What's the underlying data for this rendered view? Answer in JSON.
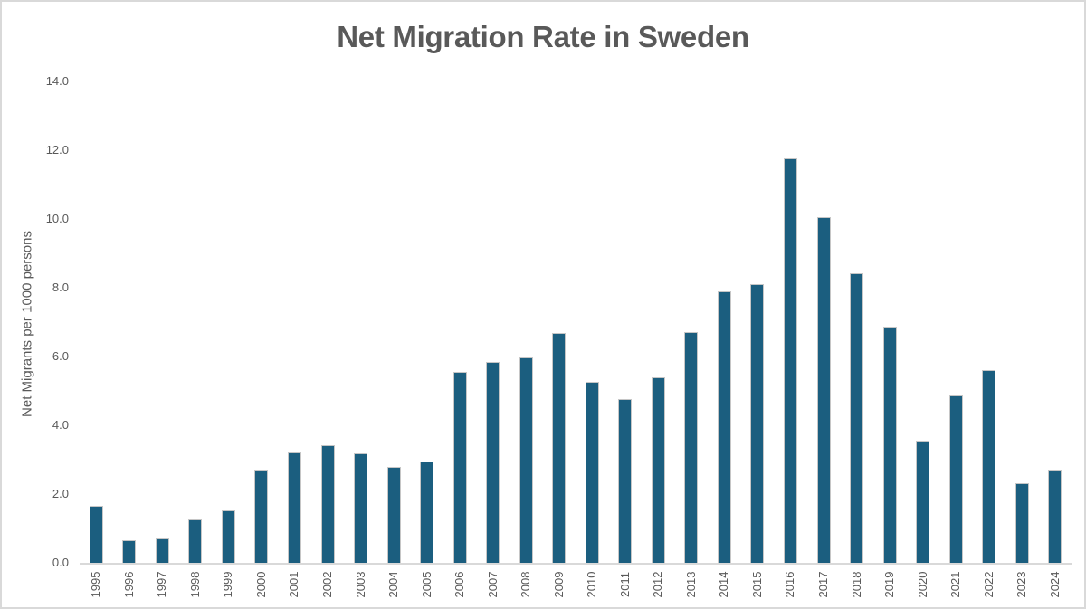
{
  "colors": {
    "bar_fill": "#1b5e7f",
    "bar_edge": "#c6c6c6",
    "title_text": "#595959",
    "axis_text": "#595959",
    "axis_line": "#d9d9d9",
    "frame_border": "#d9d9d9",
    "background": "#ffffff"
  },
  "chart_data": {
    "type": "bar",
    "title": "Net Migration Rate in Sweden",
    "xlabel": "",
    "ylabel": "Net Migrants per 1000 persons",
    "ylim": [
      0,
      14
    ],
    "ytick_step": 2,
    "ytick_labels": [
      "0.0",
      "2.0",
      "4.0",
      "6.0",
      "8.0",
      "10.0",
      "12.0",
      "14.0"
    ],
    "grid": false,
    "legend_position": "none",
    "x_label_rotation_degrees": 90,
    "categories": [
      "1995",
      "1996",
      "1997",
      "1998",
      "1999",
      "2000",
      "2001",
      "2002",
      "2003",
      "2004",
      "2005",
      "2006",
      "2007",
      "2008",
      "2009",
      "2010",
      "2011",
      "2012",
      "2013",
      "2014",
      "2015",
      "2016",
      "2017",
      "2018",
      "2019",
      "2020",
      "2021",
      "2022",
      "2023",
      "2024"
    ],
    "values": [
      1.65,
      0.65,
      0.72,
      1.25,
      1.52,
      2.7,
      3.2,
      3.42,
      3.18,
      2.8,
      2.95,
      5.55,
      5.85,
      5.98,
      6.68,
      5.27,
      4.76,
      5.4,
      6.71,
      7.9,
      8.1,
      11.75,
      10.05,
      8.41,
      6.87,
      3.55,
      4.86,
      5.6,
      2.31,
      2.72
    ]
  }
}
